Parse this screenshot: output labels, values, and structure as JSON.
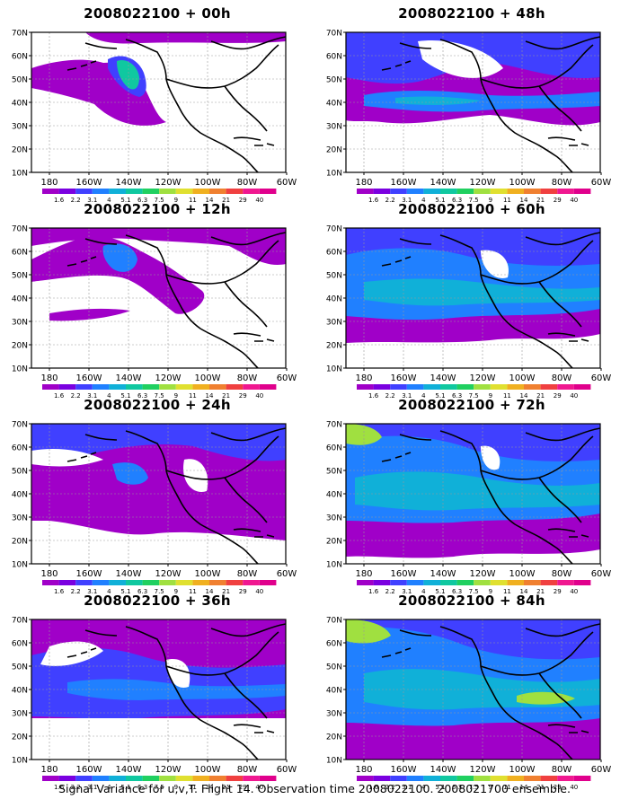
{
  "lat_labels": [
    "70N",
    "60N",
    "50N",
    "40N",
    "30N",
    "20N",
    "10N"
  ],
  "lon_labels": [
    "180",
    "160W",
    "140W",
    "120W",
    "100W",
    "80W",
    "60W"
  ],
  "colorbar": {
    "labels": [
      "1.6",
      "2.2",
      "3.1",
      "4",
      "5.1",
      "6.3",
      "7.5",
      "9",
      "11",
      "14",
      "21",
      "29",
      "40"
    ],
    "colors": [
      "#a000c8",
      "#7a00e0",
      "#4040ff",
      "#2080ff",
      "#10b0d8",
      "#10c8a0",
      "#20d060",
      "#a0e040",
      "#e0e030",
      "#f0b020",
      "#f08030",
      "#f04040",
      "#f01890",
      "#e0008c"
    ]
  },
  "panels": [
    {
      "id": "p00",
      "title": "2008022100 + 00h"
    },
    {
      "id": "p48",
      "title": "2008022100 + 48h"
    },
    {
      "id": "p12",
      "title": "2008022100 + 12h"
    },
    {
      "id": "p60",
      "title": "2008022100 + 60h"
    },
    {
      "id": "p24",
      "title": "2008022100 + 24h"
    },
    {
      "id": "p72",
      "title": "2008022100 + 72h"
    },
    {
      "id": "p36",
      "title": "2008022100 + 36h"
    },
    {
      "id": "p84",
      "title": "2008022100 + 84h"
    }
  ],
  "caption": "Signal Variance for u,v,T. Flight 14. Observation time 2008022100. 2008021700 ensemble."
}
